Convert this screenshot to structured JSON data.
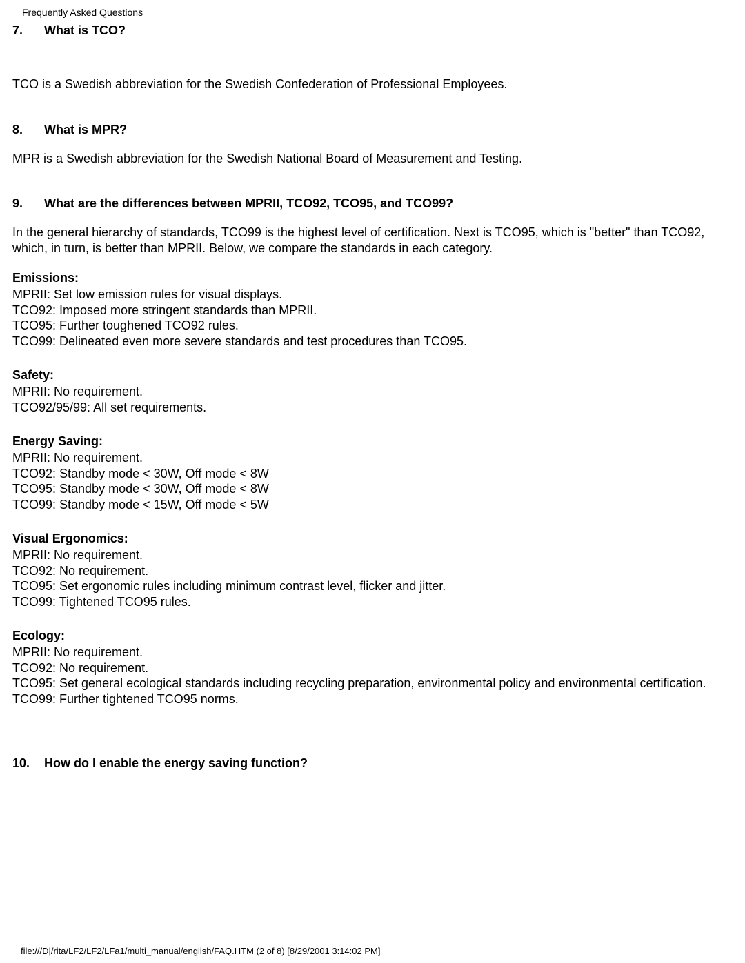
{
  "docTitle": "Frequently Asked Questions",
  "q7": {
    "num": "7.",
    "text": "What is TCO?"
  },
  "a7": "TCO is a Swedish abbreviation for the Swedish Confederation of Professional Employees.",
  "q8": {
    "num": "8.",
    "text": "What is MPR?"
  },
  "a8": "MPR is a Swedish abbreviation for the Swedish National Board of Measurement and Testing.",
  "q9": {
    "num": "9.",
    "text": "What are the differences between MPRII, TCO92, TCO95, and TCO99?"
  },
  "a9": "In the general hierarchy of standards, TCO99 is the highest level of certification. Next is TCO95, which is \"better\" than TCO92, which, in turn, is better than MPRII. Below, we compare the standards in each category.",
  "emissions": {
    "heading": "Emissions:",
    "l1": "MPRII: Set low emission rules for visual displays.",
    "l2": "TCO92: Imposed more stringent standards than MPRII.",
    "l3": "TCO95: Further toughened TCO92 rules.",
    "l4": "TCO99: Delineated even more severe standards and test procedures than TCO95."
  },
  "safety": {
    "heading": "Safety:",
    "l1": "MPRII: No requirement.",
    "l2": "TCO92/95/99: All set requirements."
  },
  "energy": {
    "heading": "Energy Saving:",
    "l1": "MPRII: No requirement.",
    "l2": "TCO92: Standby mode < 30W, Off mode < 8W",
    "l3": "TCO95: Standby mode < 30W, Off mode < 8W",
    "l4": "TCO99: Standby mode < 15W, Off mode < 5W"
  },
  "visual": {
    "heading": "Visual Ergonomics:",
    "l1": "MPRII: No requirement.",
    "l2": "TCO92: No requirement.",
    "l3": "TCO95: Set ergonomic rules including minimum contrast level, flicker and jitter.",
    "l4": "TCO99: Tightened TCO95 rules."
  },
  "ecology": {
    "heading": "Ecology:",
    "l1": "MPRII: No requirement.",
    "l2": "TCO92: No requirement.",
    "l3": "TCO95: Set general ecological standards including recycling preparation, environmental policy and environmental certification.",
    "l4": "TCO99: Further tightened TCO95 norms."
  },
  "q10": {
    "num": "10.",
    "text": "How do I enable the energy saving function?"
  },
  "footer": "file:///D|/rita/LF2/LF2/LFa1/multi_manual/english/FAQ.HTM (2 of 8) [8/29/2001 3:14:02 PM]"
}
